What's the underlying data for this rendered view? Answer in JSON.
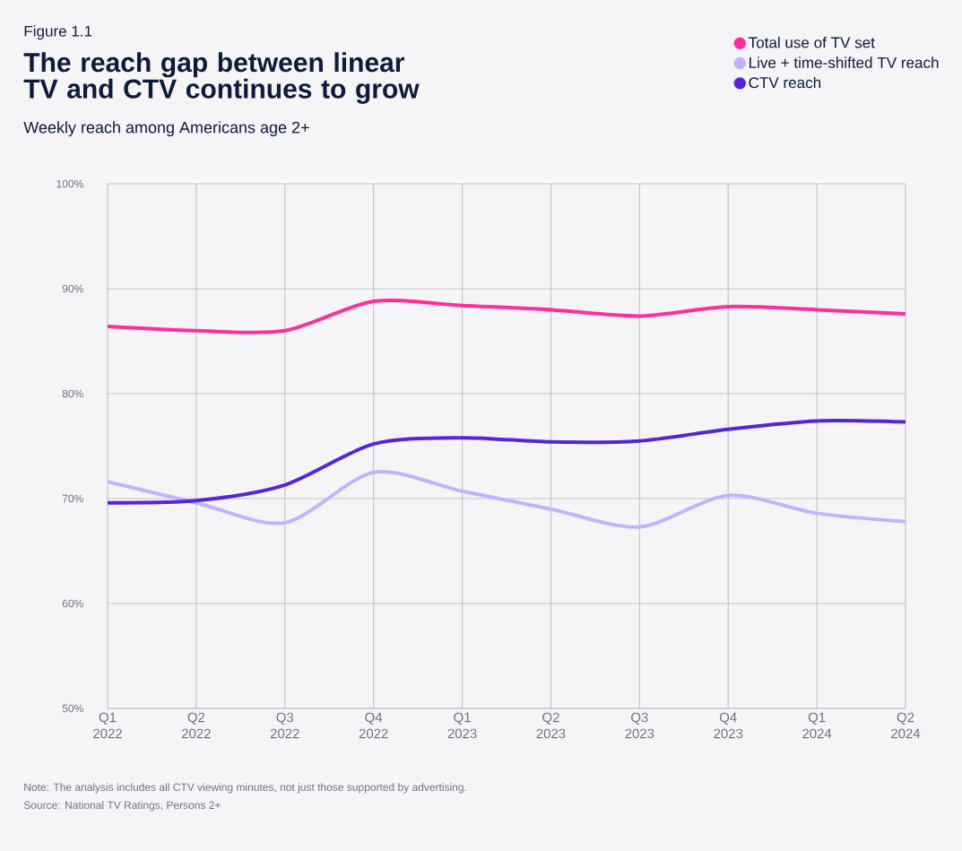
{
  "chart_data": {
    "type": "line",
    "title": "The reach gap between linear TV and CTV continues to grow",
    "subtitle": "Weekly reach among Americans age 2+",
    "annotations": [
      "Figure 1.1",
      "Note: The analysis includes all CTV viewing minutes, not just those supported by advertising.",
      "Source: National TV Ratings, Persons 2+"
    ],
    "categories": [
      "Q1 2022",
      "Q2 2022",
      "Q3 2022",
      "Q4 2022",
      "Q1 2023",
      "Q2 2023",
      "Q3 2023",
      "Q4 2023",
      "Q1 2024",
      "Q2 2024"
    ],
    "series": [
      {
        "name": "Total use of TV set",
        "color": "#ff2e9a",
        "values": [
          86.4,
          86.0,
          86.0,
          88.8,
          88.4,
          88.0,
          87.4,
          88.3,
          88.0,
          87.6
        ]
      },
      {
        "name": "Live + time-shifted TV reach",
        "color": "#c0b4ff",
        "values": [
          71.6,
          69.6,
          67.7,
          72.5,
          70.7,
          69.0,
          67.3,
          70.3,
          68.6,
          67.8
        ]
      },
      {
        "name": "CTV reach",
        "color": "#5526d6",
        "values": [
          69.6,
          69.8,
          71.3,
          75.2,
          75.8,
          75.4,
          75.5,
          76.6,
          77.4,
          77.3
        ]
      }
    ],
    "ylim": [
      50,
      100
    ],
    "yticks": [
      {
        "value": 50,
        "label": "50%"
      },
      {
        "value": 60,
        "label": "60%"
      },
      {
        "value": 70,
        "label": "70%"
      },
      {
        "value": 80,
        "label": "80%"
      },
      {
        "value": 90,
        "label": "90%"
      },
      {
        "value": 100,
        "label": "100%"
      }
    ],
    "grid": true,
    "legend": "top right",
    "marker": "none",
    "line_style": "solid"
  }
}
